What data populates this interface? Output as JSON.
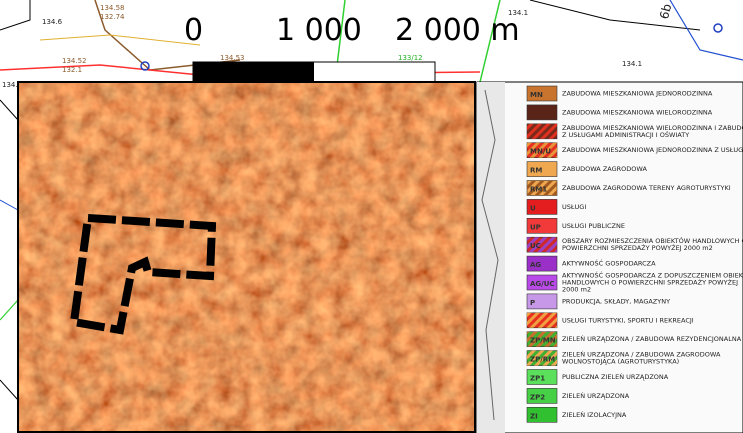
{
  "map": {
    "scale_labels": [
      "0",
      "1 000",
      "2 000 m"
    ],
    "labels": [
      "134.6",
      "134.58",
      "132.74",
      "134.1",
      "6b",
      "134.52",
      "132.1",
      "134.53",
      "133/12",
      "134.1",
      "134."
    ]
  },
  "legend": [
    {
      "code": "MN",
      "label": "ZABUDOWA MIESZKANIOWA JEDNORODZINNA",
      "color": "#c8742e"
    },
    {
      "label": "ZABUDOWA MIESZKANIOWA WIELORODZINNA",
      "color": "#5a2418"
    },
    {
      "label": "ZABUDOWA MIESZKANIOWA WIELORODZINNA I ZABUDOWA Z USŁUGAMI ADMINISTRACJI I OŚWIATY",
      "color": "#7a2a1a",
      "hatch": "#e03020"
    },
    {
      "code": "MN/U",
      "label": "ZABUDOWA MIESZKANIOWA JEDNORODZINNA Z USŁUGAMI",
      "color": "#e83020",
      "hatch": "#e8943a"
    },
    {
      "code": "RM",
      "label": "ZABUDOWA ZAGRODOWA",
      "color": "#f0a850"
    },
    {
      "code": "RM1",
      "label": "ZABUDOWA ZAGRODOWA TERENY AGROTURYSTYKI",
      "color": "#f0a850",
      "hatch": "#a05a20"
    },
    {
      "code": "U",
      "label": "USŁUGI",
      "color": "#e41e1e"
    },
    {
      "code": "UP",
      "label": "USŁUGI PUBLICZNE",
      "color": "#f23a3a"
    },
    {
      "code": "UC",
      "label": "OBSZARY ROZMIESZCZENIA OBIEKTÓW HANDLOWYCH O POWIERZCHNI SPRZEDAŻY POWYŻEJ 2000 m2",
      "color": "#d02828",
      "hatch": "#9a40c0"
    },
    {
      "code": "AG",
      "label": "AKTYWNOŚĆ GOSPODARCZA",
      "color": "#9a30c8"
    },
    {
      "code": "AG/UC",
      "label": "AKTYWNOŚĆ GOSPODARCZA Z DOPUSZCZENIEM OBIEKTÓW HANDLOWYCH O POWIERZCHNI SPRZEDAŻY POWYŻEJ 2000 m2",
      "color": "#b84ae8"
    },
    {
      "code": "P",
      "label": "PRODUKCJA, SKŁADY, MAGAZYNY",
      "color": "#c898e8"
    },
    {
      "label": "USŁUGI TURYSTYKI, SPORTU I REKREACJI",
      "color": "#e83020",
      "hatch": "#f0a040"
    },
    {
      "code": "ZP/MN",
      "label": "ZIELEŃ URZĄDZONA / ZABUDOWA REZYDENCJONALNA",
      "color": "#40b030",
      "hatch": "#c87030"
    },
    {
      "code": "ZP/RM",
      "label": "ZIELEŃ URZĄDZONA / ZABUDOWA ZAGRODOWA WOLNOSTOJĄCA (AGROTURYSTYKA)",
      "color": "#40b030",
      "hatch": "#f0a850"
    },
    {
      "code": "ZP1",
      "label": "PUBLICZNA ZIELEŃ URZĄDZONA",
      "color": "#5ae05a"
    },
    {
      "code": "ZP2",
      "label": "ZIELEŃ URZĄDZONA",
      "color": "#46d046"
    },
    {
      "code": "ZI",
      "label": "ZIELEŃ IZOLACYJNA",
      "color": "#30c030"
    }
  ]
}
